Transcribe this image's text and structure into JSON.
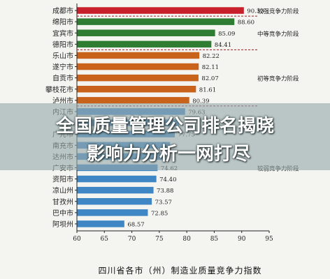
{
  "headline": {
    "line1": "全国质量管理公司排名揭晓",
    "line2": "影响力分析一网打尽"
  },
  "chart_data": {
    "type": "bar",
    "orientation": "horizontal",
    "xlabel": "四川省各市（州）制造业质量竞争力指数",
    "xlim": [
      60,
      95
    ],
    "xticks": [
      60,
      65,
      70,
      75,
      80,
      85,
      90,
      95
    ],
    "grid": false,
    "categories": [
      "成都市",
      "绵阳市",
      "宜宾市",
      "德阳市",
      "乐山市",
      "遂宁市",
      "自贡市",
      "攀枝花市",
      "泸州市",
      "内江市",
      "",
      "广元市",
      "南充市",
      "达州市",
      "广安市",
      "资阳市",
      "凉山州",
      "甘孜州",
      "巴中市",
      "阿坝州"
    ],
    "values": [
      90.33,
      88.6,
      85.09,
      84.41,
      82.22,
      82.11,
      82.07,
      81.61,
      80.39,
      79.63,
      78.5,
      77.75,
      76.9,
      75.6,
      74.62,
      74.4,
      73.88,
      73.57,
      72.85,
      68.57
    ],
    "value_labels": [
      "90.33",
      "88.60",
      "85.09",
      "84.41",
      "82.22",
      "82.11",
      "82.07",
      "81.61",
      "80.39",
      "79.63",
      "",
      "77.75",
      "",
      "",
      "74.62",
      "74.40",
      "73.88",
      "73.57",
      "72.85",
      "68.57"
    ],
    "tiers": [
      {
        "label": "较强竞争力阶段",
        "color": "#c8202a",
        "start": 0,
        "end": 0
      },
      {
        "label": "中等竞争力阶段",
        "color": "#2f7d32",
        "start": 1,
        "end": 3
      },
      {
        "label": "初等竞争力阶段",
        "color": "#c9621a",
        "start": 4,
        "end": 8
      },
      {
        "label": "较弱竞争力阶段",
        "color": "#3f86c4",
        "start": 9,
        "end": 19
      }
    ]
  }
}
